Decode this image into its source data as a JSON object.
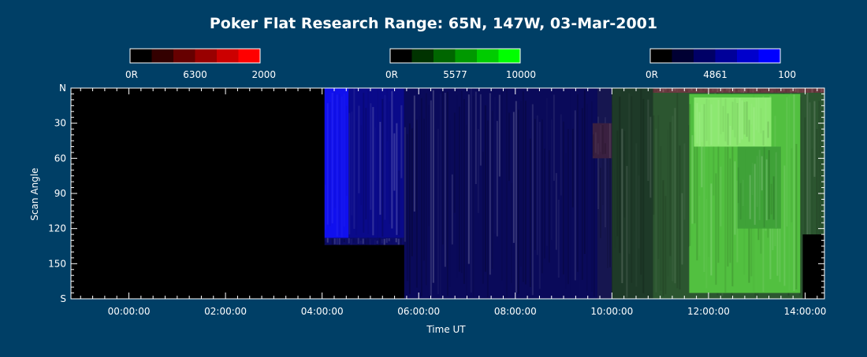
{
  "chart_data": {
    "type": "heatmap",
    "title": "Poker Flat Research Range: 65N, 147W, 03-Mar-2001",
    "xlabel": "Time UT",
    "ylabel": "Scan Angle",
    "x_tick_labels": [
      "00:00:00",
      "02:00:00",
      "04:00:00",
      "06:00:00",
      "08:00:00",
      "10:00:00",
      "12:00:00",
      "14:00:00"
    ],
    "x_ticks_hours": [
      0,
      2,
      4,
      6,
      8,
      10,
      12,
      14
    ],
    "xlim_hours": [
      -1.2,
      14.4
    ],
    "y_tick_labels": [
      "N",
      "30",
      "60",
      "90",
      "120",
      "150",
      "S"
    ],
    "y_ticks": [
      0,
      30,
      60,
      90,
      120,
      150,
      180
    ],
    "ylim": [
      0,
      180
    ],
    "colorbars": [
      {
        "name": "6300",
        "min_label": "0R",
        "max_label": "2000",
        "channel": "red",
        "color": "#ff0000",
        "steps": [
          "#000000",
          "#330000",
          "#660000",
          "#990000",
          "#cc0000",
          "#ff0000"
        ]
      },
      {
        "name": "5577",
        "min_label": "0R",
        "max_label": "10000",
        "channel": "green",
        "color": "#00ff00",
        "steps": [
          "#000000",
          "#003300",
          "#006600",
          "#009900",
          "#00cc00",
          "#00ff00"
        ]
      },
      {
        "name": "4861",
        "min_label": "0R",
        "max_label": "100",
        "channel": "blue",
        "color": "#0000ff",
        "steps": [
          "#000000",
          "#000033",
          "#000066",
          "#000099",
          "#0000cc",
          "#0000ff"
        ]
      }
    ],
    "regions": [
      {
        "x": [
          -1.2,
          4.05
        ],
        "y": [
          0,
          180
        ],
        "color": "#000000",
        "texture": 0
      },
      {
        "x": [
          4.05,
          4.55
        ],
        "y": [
          0,
          128
        ],
        "color": "#1010ee",
        "texture": 0.25
      },
      {
        "x": [
          4.55,
          5.7
        ],
        "y": [
          0,
          128
        ],
        "color": "#0a0a8a",
        "texture": 0.55
      },
      {
        "x": [
          4.05,
          5.7
        ],
        "y": [
          128,
          134
        ],
        "color": "#0c0c66",
        "texture": 0.6
      },
      {
        "x": [
          4.05,
          5.7
        ],
        "y": [
          134,
          180
        ],
        "color": "#000000",
        "texture": 0
      },
      {
        "x": [
          5.7,
          9.7
        ],
        "y": [
          0,
          180
        ],
        "color": "#0a0a5a",
        "texture": 0.6
      },
      {
        "x": [
          9.7,
          10.0
        ],
        "y": [
          0,
          180
        ],
        "color": "#161650",
        "texture": 0.5
      },
      {
        "x": [
          9.6,
          10.0
        ],
        "y": [
          30,
          60
        ],
        "color": "#3a2040",
        "texture": 0.5
      },
      {
        "x": [
          10.0,
          10.85
        ],
        "y": [
          0,
          180
        ],
        "color": "#1e3a28",
        "texture": 0.5
      },
      {
        "x": [
          10.85,
          14.4
        ],
        "y": [
          0,
          180
        ],
        "color": "#2c5630",
        "texture": 0.45
      },
      {
        "x": [
          11.6,
          13.9
        ],
        "y": [
          5,
          175
        ],
        "color": "#52c040",
        "texture": 0.45
      },
      {
        "x": [
          11.7,
          13.3
        ],
        "y": [
          8,
          50
        ],
        "color": "#8ce870",
        "texture": 0.35
      },
      {
        "x": [
          12.6,
          13.5
        ],
        "y": [
          50,
          120
        ],
        "color": "#3fa238",
        "texture": 0.5
      },
      {
        "x": [
          13.95,
          14.4
        ],
        "y": [
          125,
          180
        ],
        "color": "#000000",
        "texture": 0
      },
      {
        "x": [
          10.85,
          14.4
        ],
        "y": [
          0,
          4
        ],
        "color": "#6a3a40",
        "texture": 0.4
      }
    ]
  }
}
